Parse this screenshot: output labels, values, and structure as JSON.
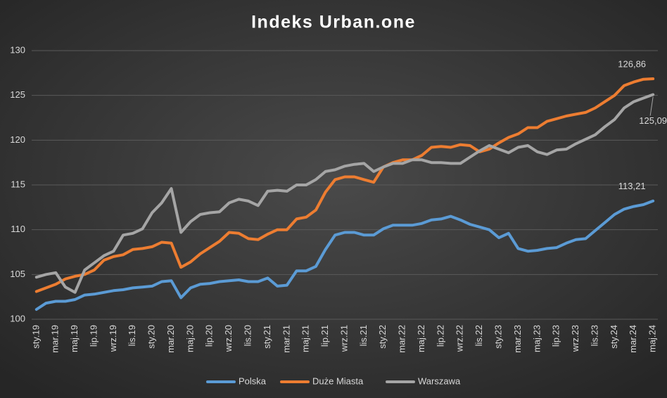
{
  "chart_data": {
    "type": "line",
    "title": "Indeks Urban.one",
    "categories": [
      "sty.19",
      null,
      "mar.19",
      null,
      "maj.19",
      null,
      "lip.19",
      null,
      "wrz.19",
      null,
      "lis.19",
      null,
      "sty.20",
      null,
      "mar.20",
      null,
      "maj.20",
      null,
      "lip.20",
      null,
      "wrz.20",
      null,
      "lis.20",
      null,
      "sty.21",
      null,
      "mar.21",
      null,
      "maj.21",
      null,
      "lip.21",
      null,
      "wrz.21",
      null,
      "lis.21",
      null,
      "sty.22",
      null,
      "mar.22",
      null,
      "maj.22",
      null,
      "lip.22",
      null,
      "wrz.22",
      null,
      "lis.22",
      null,
      "sty.23",
      null,
      "mar.23",
      null,
      "maj.23",
      null,
      "lip.23",
      null,
      "wrz.23",
      null,
      "lis.23",
      null,
      "sty.24",
      null,
      "mar.24",
      null,
      "maj.24"
    ],
    "series": [
      {
        "name": "Polska",
        "color": "#5b9bd5",
        "values": [
          101.1,
          101.8,
          102.0,
          102.0,
          102.2,
          102.7,
          102.8,
          103.0,
          103.2,
          103.3,
          103.5,
          103.6,
          103.7,
          104.2,
          104.3,
          102.4,
          103.5,
          103.9,
          104.0,
          104.2,
          104.3,
          104.4,
          104.2,
          104.2,
          104.6,
          103.7,
          103.8,
          105.4,
          105.4,
          105.9,
          107.8,
          109.4,
          109.7,
          109.7,
          109.4,
          109.4,
          110.1,
          110.5,
          110.5,
          110.5,
          110.7,
          111.1,
          111.2,
          111.5,
          111.1,
          110.6,
          110.3,
          110.0,
          109.1,
          109.6,
          107.9,
          107.6,
          107.7,
          107.9,
          108.0,
          108.5,
          108.9,
          109.0,
          109.9,
          110.8,
          111.7,
          112.3,
          112.6,
          112.8,
          113.21
        ],
        "value_labels": [
          null,
          null,
          null,
          null,
          null,
          null,
          null,
          null,
          null,
          null,
          null,
          null,
          null,
          null,
          null,
          null,
          null,
          null,
          null,
          null,
          null,
          null,
          null,
          null,
          null,
          null,
          null,
          null,
          null,
          null,
          null,
          null,
          null,
          null,
          null,
          null,
          null,
          null,
          null,
          null,
          null,
          null,
          null,
          null,
          null,
          null,
          null,
          null,
          null,
          null,
          null,
          null,
          null,
          null,
          null,
          null,
          null,
          null,
          null,
          null,
          null,
          null,
          null,
          null,
          "113,21"
        ]
      },
      {
        "name": "Duże Miasta",
        "color": "#ed7d31",
        "values": [
          103.1,
          103.5,
          103.9,
          104.5,
          104.8,
          105.0,
          105.5,
          106.6,
          107.0,
          107.2,
          107.8,
          107.9,
          108.1,
          108.6,
          108.5,
          105.8,
          106.4,
          107.3,
          108.0,
          108.7,
          109.7,
          109.6,
          109.0,
          108.9,
          109.5,
          110.0,
          110.0,
          111.2,
          111.4,
          112.2,
          114.2,
          115.6,
          115.9,
          115.9,
          115.6,
          115.3,
          117.0,
          117.5,
          117.8,
          117.8,
          118.3,
          119.2,
          119.3,
          119.2,
          119.5,
          119.4,
          118.7,
          119.0,
          119.7,
          120.3,
          120.7,
          121.4,
          121.4,
          122.1,
          122.4,
          122.7,
          122.9,
          123.1,
          123.6,
          124.3,
          125.0,
          126.1,
          126.5,
          126.8,
          126.86
        ],
        "value_labels": [
          null,
          null,
          null,
          null,
          null,
          null,
          null,
          null,
          null,
          null,
          null,
          null,
          null,
          null,
          null,
          null,
          null,
          null,
          null,
          null,
          null,
          null,
          null,
          null,
          null,
          null,
          null,
          null,
          null,
          null,
          null,
          null,
          null,
          null,
          null,
          null,
          null,
          null,
          null,
          null,
          null,
          null,
          null,
          null,
          null,
          null,
          null,
          null,
          null,
          null,
          null,
          null,
          null,
          null,
          null,
          null,
          null,
          null,
          null,
          null,
          null,
          null,
          null,
          null,
          "126,86"
        ]
      },
      {
        "name": "Warszawa",
        "color": "#a5a5a5",
        "values": [
          104.7,
          105.0,
          105.2,
          103.6,
          103.0,
          105.5,
          106.3,
          107.1,
          107.6,
          109.4,
          109.6,
          110.1,
          111.9,
          113.0,
          114.6,
          109.7,
          110.9,
          111.7,
          111.9,
          112.0,
          113.0,
          113.4,
          113.2,
          112.7,
          114.3,
          114.4,
          114.3,
          115.0,
          115.0,
          115.6,
          116.5,
          116.7,
          117.1,
          117.3,
          117.4,
          116.5,
          117.0,
          117.4,
          117.4,
          117.8,
          117.8,
          117.5,
          117.5,
          117.4,
          117.4,
          118.1,
          118.8,
          119.4,
          119.0,
          118.6,
          119.2,
          119.4,
          118.7,
          118.4,
          118.9,
          119.0,
          119.6,
          120.1,
          120.6,
          121.5,
          122.3,
          123.6,
          124.3,
          124.7,
          125.09
        ],
        "value_labels": [
          null,
          null,
          null,
          null,
          null,
          null,
          null,
          null,
          null,
          null,
          null,
          null,
          null,
          null,
          null,
          null,
          null,
          null,
          null,
          null,
          null,
          null,
          null,
          null,
          null,
          null,
          null,
          null,
          null,
          null,
          null,
          null,
          null,
          null,
          null,
          null,
          null,
          null,
          null,
          null,
          null,
          null,
          null,
          null,
          null,
          null,
          null,
          null,
          null,
          null,
          null,
          null,
          null,
          null,
          null,
          null,
          null,
          null,
          null,
          null,
          null,
          null,
          null,
          null,
          "125,09"
        ]
      }
    ],
    "ylim": [
      100,
      130
    ],
    "yticks": [
      100,
      105,
      110,
      115,
      120,
      125,
      130
    ],
    "grid": true,
    "legend": "bottom"
  }
}
